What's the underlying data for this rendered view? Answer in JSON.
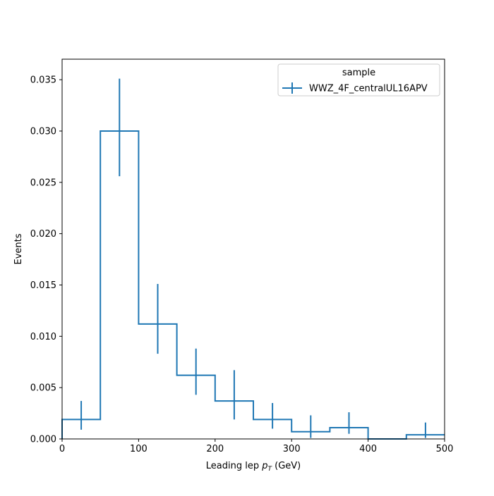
{
  "chart_data": {
    "type": "histogram",
    "title": "",
    "xlabel": {
      "prefix": "Leading lep ",
      "var": "p",
      "sub": "T",
      "suffix": " (GeV)"
    },
    "ylabel": "Events",
    "xlim": [
      0,
      500
    ],
    "ylim": [
      0,
      0.037
    ],
    "x_ticks": [
      0,
      100,
      200,
      300,
      400,
      500
    ],
    "x_tick_labels": [
      "0",
      "100",
      "200",
      "300",
      "400",
      "500"
    ],
    "y_ticks": [
      0,
      0.005,
      0.01,
      0.015,
      0.02,
      0.025,
      0.03,
      0.035
    ],
    "y_tick_labels": [
      "0.000",
      "0.005",
      "0.010",
      "0.015",
      "0.020",
      "0.025",
      "0.030",
      "0.035"
    ],
    "grid": false,
    "legend": {
      "title": "sample",
      "position": "top-right"
    },
    "series": [
      {
        "name": "WWZ_4F_centralUL16APV",
        "color": "#1f77b4",
        "bin_edges": [
          0,
          50,
          100,
          150,
          200,
          250,
          300,
          350,
          400,
          450,
          500
        ],
        "values": [
          0.0019,
          0.03,
          0.0112,
          0.0062,
          0.0037,
          0.0019,
          0.0007,
          0.0011,
          0.0,
          0.0004
        ],
        "errors_up": [
          0.0018,
          0.0051,
          0.0039,
          0.0026,
          0.003,
          0.0016,
          0.0016,
          0.0015,
          0.0,
          0.0012
        ],
        "errors_down": [
          0.001,
          0.0044,
          0.0029,
          0.0019,
          0.0018,
          0.0009,
          0.0006,
          0.0006,
          0.0,
          0.0003
        ]
      }
    ]
  }
}
